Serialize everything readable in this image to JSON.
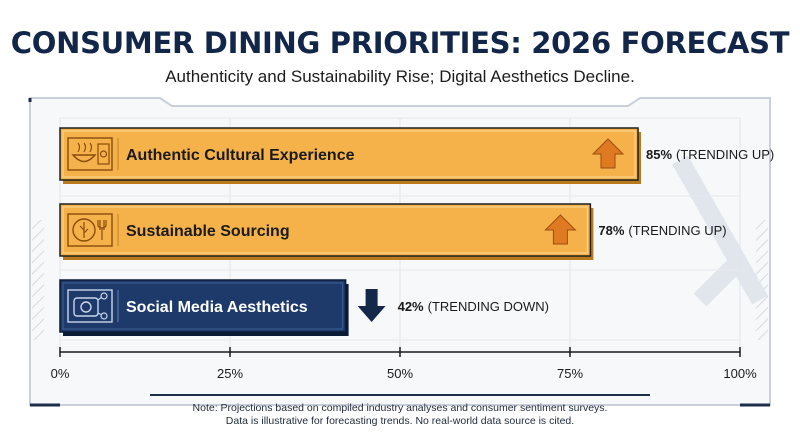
{
  "chart_data": {
    "type": "bar",
    "orientation": "horizontal",
    "title": "CONSUMER DINING PRIORITIES: 2026 FORECAST",
    "subtitle": "Authenticity and Sustainability Rise; Digital Aesthetics Decline.",
    "categories": [
      "Authentic Cultural Experience",
      "Sustainable Sourcing",
      "Social Media Aesthetics"
    ],
    "values": [
      85,
      78,
      42
    ],
    "value_labels": [
      "85%",
      "78%",
      "42%"
    ],
    "trend_labels": [
      "(TRENDING UP)",
      "(TRENDING UP)",
      "(TRENDING DOWN)"
    ],
    "trends": [
      "up",
      "up",
      "down"
    ],
    "icons": [
      "food-bowl-icon",
      "leaf-fork-icon",
      "camera-social-icon"
    ],
    "xlim": [
      0,
      100
    ],
    "xticks": [
      "0%",
      "25%",
      "50%",
      "75%",
      "100%"
    ],
    "grid": true,
    "colors": {
      "up_bar": "#f6b24a",
      "up_bar_border": "#1f1f1f",
      "up_arrow": "#e07a22",
      "down_bar": "#1e3a6b",
      "down_arrow": "#14284a",
      "axis": "#1a1a1a"
    }
  },
  "footnote": {
    "line1": "Note: Projections based on compiled industry analyses and consumer sentiment surveys.",
    "line2": "Data is illustrative for forecasting trends. No real-world data source is cited."
  }
}
